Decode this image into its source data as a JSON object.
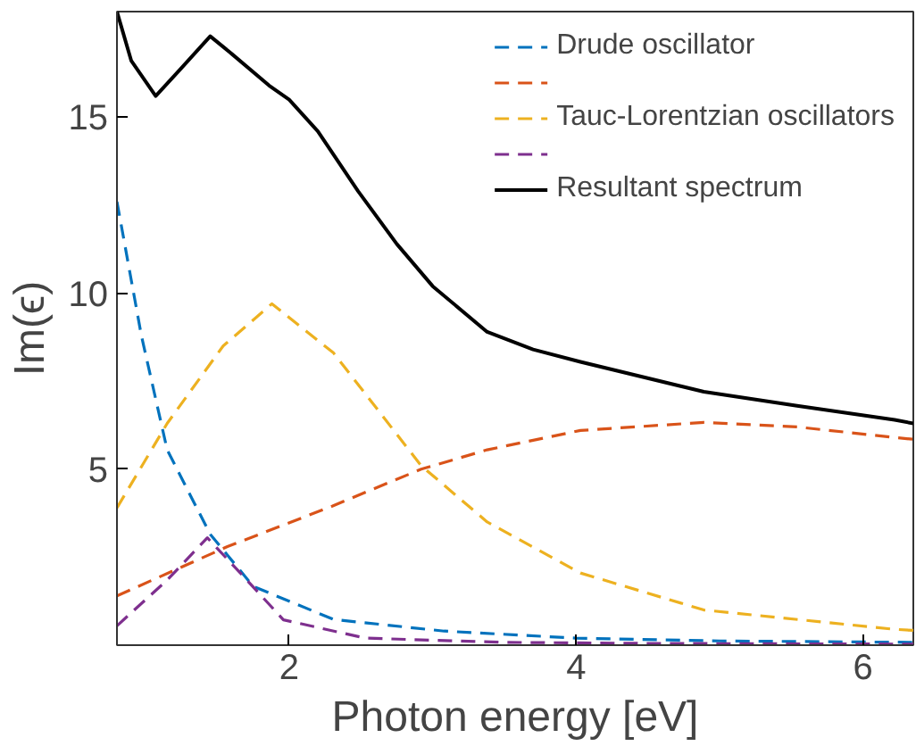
{
  "chart_data": {
    "type": "line",
    "xlabel": "Photon energy [eV]",
    "ylabel": "Im(ϵ)",
    "xlim": [
      0.8,
      6.35
    ],
    "ylim": [
      0,
      18
    ],
    "xticks": [
      2,
      4,
      6
    ],
    "yticks": [
      5,
      10,
      15
    ],
    "grid": false,
    "legend": "top right",
    "marker": "none",
    "series": [
      {
        "name": "Drude oscillator",
        "color": "#0072bd",
        "line_style": "dashed",
        "x": [
          0.8,
          0.97,
          1.15,
          1.45,
          1.75,
          2.31,
          3.08,
          4.0,
          5.0,
          6.35
        ],
        "values": [
          12.6,
          8.8,
          5.55,
          3.15,
          1.67,
          0.73,
          0.4,
          0.2,
          0.12,
          0.08
        ]
      },
      {
        "color": "#d95319",
        "line_style": "dashed",
        "x": [
          0.8,
          1.57,
          2.3,
          2.92,
          3.38,
          4.03,
          4.89,
          5.54,
          6.22,
          6.35
        ],
        "values": [
          1.4,
          2.8,
          3.95,
          5.0,
          5.55,
          6.1,
          6.33,
          6.2,
          5.9,
          5.85
        ]
      },
      {
        "name": "Tauc-Lorentzian oscillators",
        "color": "#edb120",
        "line_style": "dashed",
        "x": [
          0.8,
          1.15,
          1.54,
          1.88,
          2.31,
          2.92,
          3.38,
          4.03,
          4.89,
          6.22,
          6.35
        ],
        "values": [
          3.9,
          6.3,
          8.5,
          9.7,
          8.3,
          5.1,
          3.5,
          2.05,
          1.0,
          0.45,
          0.42
        ]
      },
      {
        "color": "#7e2f8e",
        "line_style": "dashed",
        "x": [
          0.8,
          1.15,
          1.43,
          1.66,
          1.96,
          2.53,
          3.5,
          4.5,
          6.35
        ],
        "values": [
          0.55,
          1.85,
          3.05,
          2.05,
          0.72,
          0.2,
          0.08,
          0.05,
          0.03
        ]
      },
      {
        "name": "Resultant spectrum",
        "color": "#000000",
        "line_style": "solid",
        "x": [
          0.8,
          0.9,
          1.07,
          1.25,
          1.45,
          1.6,
          1.86,
          2.0,
          2.2,
          2.48,
          2.75,
          3.0,
          3.38,
          3.7,
          4.03,
          4.89,
          5.54,
          6.22,
          6.35
        ],
        "values": [
          18.0,
          16.6,
          15.6,
          16.4,
          17.3,
          16.8,
          15.9,
          15.5,
          14.6,
          12.9,
          11.4,
          10.2,
          8.9,
          8.4,
          8.05,
          7.2,
          6.8,
          6.4,
          6.3
        ]
      }
    ]
  }
}
